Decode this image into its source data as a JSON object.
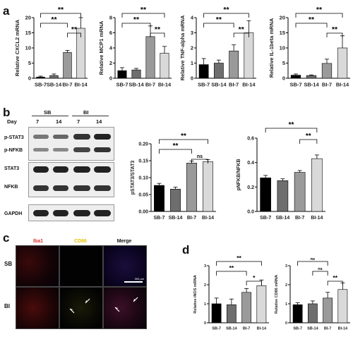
{
  "panels": {
    "a": "a",
    "b": "b",
    "c": "c",
    "d": "d"
  },
  "colors": {
    "SB-7": "#000000",
    "SB-14": "#6e6e6e",
    "BI-7": "#9a9a9a",
    "BI-14": "#d9d9d9",
    "iba1": "#e0302a",
    "cd86": "#e6c200",
    "merge": "#ffffff"
  },
  "western_blot": {
    "day_label": "Day",
    "groups": [
      "SB",
      "BI"
    ],
    "days": [
      "7",
      "14",
      "7",
      "14"
    ],
    "proteins": [
      "p-STAT3",
      "p-NFKB",
      "STAT3",
      "NFKB",
      "GAPDH"
    ]
  },
  "microscopy": {
    "channels": [
      "Iba1",
      "CD86",
      "Merge"
    ],
    "rows": [
      "SB",
      "BI"
    ],
    "scale_bar": "300 μm"
  },
  "chart_data": [
    {
      "id": "a1",
      "type": "bar",
      "categories": [
        "SB-7",
        "SB-14",
        "BI-7",
        "BI-14"
      ],
      "values": [
        0.4,
        0.9,
        8.5,
        16.5
      ],
      "errors": [
        0.3,
        0.5,
        0.7,
        3.5
      ],
      "ylabel": "Relative CXCL2 mRNA",
      "ylim": [
        0,
        20
      ],
      "yticks": [
        0,
        5,
        10,
        15,
        20
      ],
      "sig": [
        {
          "from": 0,
          "to": 2,
          "label": "**"
        },
        {
          "from": 0,
          "to": 3,
          "label": "**"
        },
        {
          "from": 2,
          "to": 3,
          "label": "**"
        }
      ]
    },
    {
      "id": "a2",
      "type": "bar",
      "categories": [
        "SB-7",
        "SB-14",
        "BI-7",
        "BI-14"
      ],
      "values": [
        1.0,
        1.1,
        5.5,
        3.3
      ],
      "errors": [
        0.4,
        0.2,
        1.4,
        0.9
      ],
      "ylabel": "Relative MCP1 mRNA",
      "ylim": [
        0,
        8
      ],
      "yticks": [
        0,
        2,
        4,
        6,
        8
      ],
      "sig": [
        {
          "from": 0,
          "to": 2,
          "label": "**"
        },
        {
          "from": 0,
          "to": 3,
          "label": "**"
        },
        {
          "from": 2,
          "to": 3,
          "label": "**"
        }
      ]
    },
    {
      "id": "a3",
      "type": "bar",
      "categories": [
        "SB-7",
        "SB-14",
        "BI-7",
        "BI-14"
      ],
      "values": [
        0.9,
        1.0,
        1.8,
        3.0
      ],
      "errors": [
        0.4,
        0.2,
        0.4,
        0.8
      ],
      "ylabel": "Relative TNF-alpha mRNA",
      "ylim": [
        0,
        4
      ],
      "yticks": [
        0,
        1,
        2,
        3,
        4
      ],
      "sig": [
        {
          "from": 0,
          "to": 2,
          "label": "**"
        },
        {
          "from": 0,
          "to": 3,
          "label": "**"
        },
        {
          "from": 2,
          "to": 3,
          "label": "**"
        }
      ]
    },
    {
      "id": "a4",
      "type": "bar",
      "categories": [
        "SB-7",
        "SB-14",
        "BI-7",
        "BI-14"
      ],
      "values": [
        1.0,
        0.9,
        4.9,
        10.0
      ],
      "errors": [
        0.4,
        0.2,
        1.4,
        4.0
      ],
      "ylabel": "Relative IL-1beta mRNA",
      "ylim": [
        0,
        20
      ],
      "yticks": [
        0,
        5,
        10,
        15,
        20
      ],
      "sig": [
        {
          "from": 0,
          "to": 2,
          "label": "**"
        },
        {
          "from": 0,
          "to": 3,
          "label": "**"
        },
        {
          "from": 2,
          "to": 3,
          "label": "**"
        }
      ]
    },
    {
      "id": "b1",
      "type": "bar",
      "categories": [
        "SB-7",
        "SB-14",
        "BI-7",
        "BI-14"
      ],
      "values": [
        0.077,
        0.066,
        0.143,
        0.147
      ],
      "errors": [
        0.006,
        0.006,
        0.006,
        0.006
      ],
      "ylabel": "pSTAT3/STAT3",
      "ylim": [
        0,
        0.2
      ],
      "yticks": [
        "0.00",
        "0.05",
        "0.10",
        "0.15",
        "0.20"
      ],
      "sig": [
        {
          "from": 0,
          "to": 2,
          "label": "**"
        },
        {
          "from": 0,
          "to": 3,
          "label": "**"
        },
        {
          "from": 2,
          "to": 3,
          "label": "ns"
        }
      ]
    },
    {
      "id": "b2",
      "type": "bar",
      "categories": [
        "SB-7",
        "SB-14",
        "BI-7",
        "BI-14"
      ],
      "values": [
        0.275,
        0.252,
        0.32,
        0.432
      ],
      "errors": [
        0.02,
        0.015,
        0.015,
        0.03
      ],
      "ylabel": "pNFKB/NFKB",
      "ylim": [
        0,
        0.6
      ],
      "yticks": [
        "0.0",
        "0.2",
        "0.4",
        "0.6"
      ],
      "sig": [
        {
          "from": 0,
          "to": 3,
          "label": "**"
        },
        {
          "from": 2,
          "to": 3,
          "label": "**"
        }
      ]
    },
    {
      "id": "d1",
      "type": "bar",
      "categories": [
        "SB-7",
        "SB-14",
        "BI-7",
        "BI-14"
      ],
      "values": [
        1.0,
        0.95,
        1.6,
        1.95
      ],
      "errors": [
        0.3,
        0.3,
        0.2,
        0.3
      ],
      "ylabel": "Relative iNOS mRNA",
      "ylim": [
        0,
        3
      ],
      "yticks": [
        "0",
        "1",
        "2",
        "3"
      ],
      "sig": [
        {
          "from": 0,
          "to": 2,
          "label": "**"
        },
        {
          "from": 0,
          "to": 3,
          "label": "**"
        },
        {
          "from": 2,
          "to": 3,
          "label": "*"
        }
      ]
    },
    {
      "id": "d2",
      "type": "bar",
      "categories": [
        "SB-7",
        "SB-14",
        "BI-7",
        "BI-14"
      ],
      "values": [
        0.95,
        1.0,
        1.3,
        1.75
      ],
      "errors": [
        0.1,
        0.15,
        0.3,
        0.35
      ],
      "ylabel": "Relative CD86 mRNA",
      "ylim": [
        0,
        3
      ],
      "yticks": [
        "0",
        "1",
        "2",
        "3"
      ],
      "sig": [
        {
          "from": 0,
          "to": 2,
          "label": "ns"
        },
        {
          "from": 1,
          "to": 2,
          "label": "ns"
        },
        {
          "from": 2,
          "to": 3,
          "label": "**"
        }
      ]
    }
  ]
}
